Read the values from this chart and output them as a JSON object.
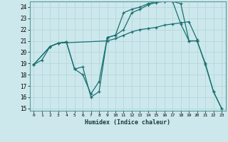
{
  "xlabel": "Humidex (Indice chaleur)",
  "bg_color": "#cce8ec",
  "grid_color": "#b0d4d8",
  "line_color": "#1a7070",
  "xlim": [
    -0.5,
    23.5
  ],
  "ylim": [
    14.8,
    24.5
  ],
  "yticks": [
    15,
    16,
    17,
    18,
    19,
    20,
    21,
    22,
    23,
    24
  ],
  "xticks": [
    0,
    1,
    2,
    3,
    4,
    5,
    6,
    7,
    8,
    9,
    10,
    11,
    12,
    13,
    14,
    15,
    16,
    17,
    18,
    19,
    20,
    21,
    22,
    23
  ],
  "line1_x": [
    0,
    1,
    2,
    3,
    9,
    10,
    11,
    12,
    13,
    14,
    15,
    16,
    17,
    18,
    19,
    20
  ],
  "line1_y": [
    18.9,
    19.3,
    20.5,
    20.8,
    21.0,
    21.2,
    21.5,
    21.8,
    22.0,
    22.1,
    22.2,
    22.4,
    22.5,
    22.6,
    22.7,
    21.1
  ],
  "line2_x": [
    0,
    2,
    3,
    4,
    5,
    6,
    7,
    8,
    9,
    10,
    11,
    12,
    13,
    14,
    15,
    16,
    17,
    18,
    19,
    20,
    21,
    22,
    23
  ],
  "line2_y": [
    18.9,
    20.5,
    20.8,
    20.9,
    18.5,
    18.0,
    16.3,
    17.4,
    21.3,
    21.5,
    23.5,
    23.8,
    24.0,
    24.3,
    24.5,
    24.5,
    24.5,
    22.5,
    21.0,
    21.0,
    19.0,
    16.5,
    15.0
  ],
  "line3_x": [
    0,
    2,
    3,
    4,
    5,
    6,
    7,
    8,
    9,
    10,
    11,
    12,
    13,
    14,
    15,
    16,
    17,
    18,
    19,
    20,
    21,
    22,
    23
  ],
  "line3_y": [
    18.9,
    20.5,
    20.8,
    20.9,
    18.5,
    18.7,
    16.0,
    16.5,
    21.3,
    21.5,
    22.0,
    23.5,
    23.8,
    24.2,
    24.4,
    24.5,
    24.5,
    24.3,
    21.0,
    21.0,
    18.9,
    16.5,
    15.0
  ]
}
